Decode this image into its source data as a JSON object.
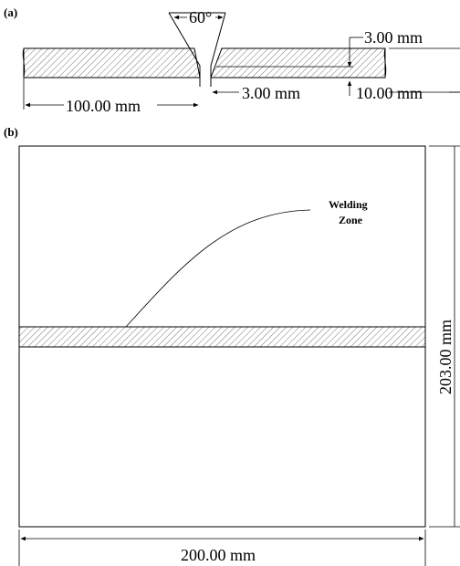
{
  "panel_a": {
    "label": "(a)",
    "angle_label": "60°",
    "root_gap_label": "3.00 mm",
    "root_face_label": "3.00 mm",
    "half_width_label": "100.00 mm",
    "thickness_label": "10.00  mm"
  },
  "panel_b": {
    "label": "(b)",
    "zone_label_line1": "Welding",
    "zone_label_line2": "Zone",
    "height_label": "203.00 mm",
    "width_label": "200.00 mm"
  }
}
